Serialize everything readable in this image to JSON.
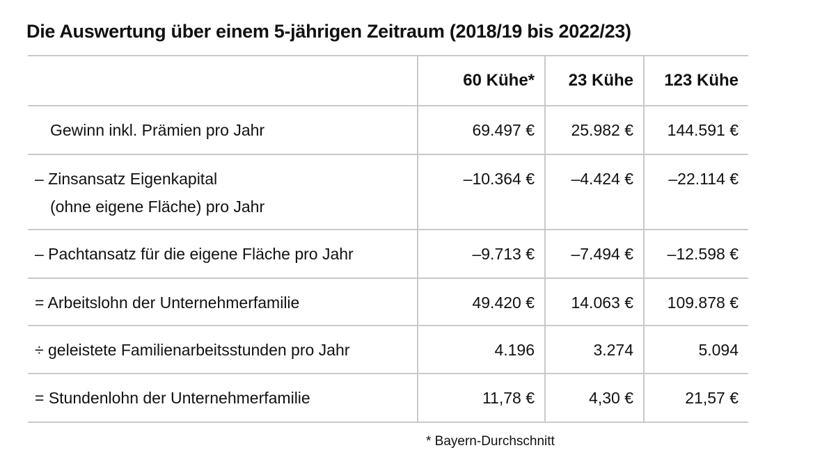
{
  "title": "Die Auswertung über einem 5-jährigen Zeitraum (2018/19 bis 2022/23)",
  "columns": [
    "",
    "60 Kühe*",
    "23 Kühe",
    "123 Kühe"
  ],
  "rows": [
    {
      "label": "   Gewinn inkl. Prämien pro Jahr",
      "values": [
        "69.497 €",
        "25.982 €",
        "144.591 €"
      ]
    },
    {
      "label": "– Zinsansatz Eigenkapital",
      "label2": "   (ohne eigene Fläche) pro Jahr",
      "values": [
        "–10.364 €",
        "–4.424 €",
        "–22.114 €"
      ]
    },
    {
      "label": "– Pachtansatz für die eigene Fläche pro Jahr",
      "values": [
        "–9.713 €",
        "–7.494 €",
        "–12.598 €"
      ]
    },
    {
      "label": "= Arbeitslohn der Unternehmerfamilie",
      "values": [
        "49.420 €",
        "14.063 €",
        "109.878 €"
      ]
    },
    {
      "label": "÷ geleistete Familienarbeitsstunden pro Jahr",
      "values": [
        "4.196",
        "3.274",
        "5.094"
      ]
    },
    {
      "label": "= Stundenlohn der Unternehmerfamilie",
      "values": [
        "11,78 €",
        "4,30 €",
        "21,57 €"
      ]
    }
  ],
  "footnote": "* Bayern-Durchschnitt"
}
